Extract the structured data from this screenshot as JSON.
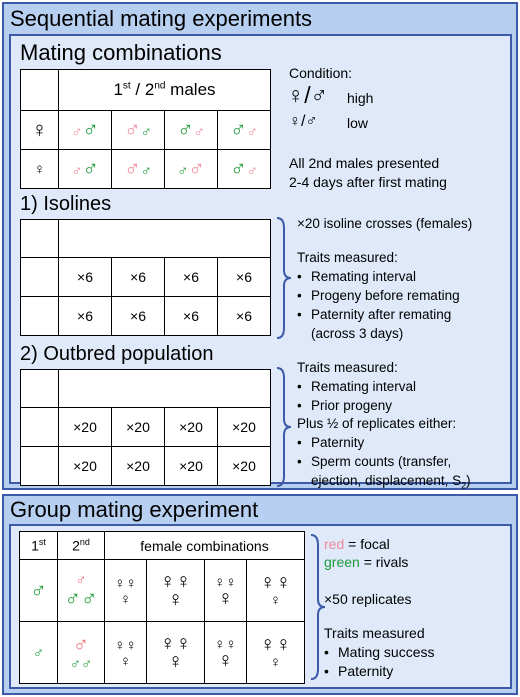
{
  "sequential": {
    "title": "Sequential mating experiments",
    "combinations": {
      "title": "Mating combinations",
      "header_prefix": "1",
      "header_sup1": "st",
      "header_mid": " / 2",
      "header_sup2": "nd",
      "header_suffix": " males",
      "condition_label": "Condition:",
      "cond_high_symbol": "♀/♂",
      "cond_high": "high",
      "cond_low_symbol": "♀/♂",
      "cond_low": "low",
      "note_line1": "All 2nd males presented",
      "note_line2": "2-4 days after first mating"
    },
    "isolines": {
      "title": "1) Isolines",
      "cell": "×6",
      "crosses": "×20 isoline crosses (females)",
      "traits_label": "Traits measured:",
      "traits": [
        "Remating interval",
        "Progeny before remating",
        "Paternity after remating",
        "(across 3 days)"
      ]
    },
    "outbred": {
      "title": "2) Outbred population",
      "cell": "×20",
      "traits_label": "Traits measured:",
      "traits": [
        "Remating interval",
        "Prior progeny"
      ],
      "plus_label": "Plus ½ of replicates either:",
      "either": [
        "Paternity",
        "Sperm counts (transfer,",
        "ejection, displacement, S"
      ],
      "subscript": "2",
      "close_paren": ")"
    }
  },
  "group": {
    "title": "Group mating experiment",
    "col1": "1",
    "col1_sup": "st",
    "col2": "2",
    "col2_sup": "nd",
    "col3": "female combinations",
    "legend_red_word": "red",
    "legend_red_rest": " = focal",
    "legend_green_word": "green",
    "legend_green_rest": " = rivals",
    "replicates": "×50 replicates",
    "traits_label": "Traits measured",
    "traits": [
      "Mating success",
      "Paternity"
    ]
  },
  "symbols": {
    "male": "♂",
    "female": "♀"
  },
  "colors": {
    "panel": "#b7cff1",
    "inner": "#dfe9f9",
    "border": "#3c5aa8",
    "focal": "#f08a9a",
    "rival": "#1c9a3a"
  }
}
